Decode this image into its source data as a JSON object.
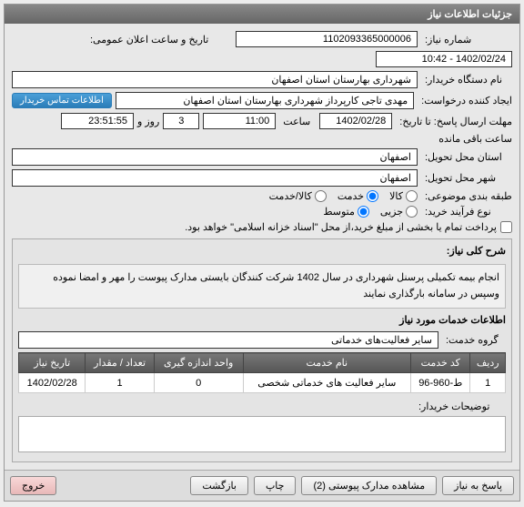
{
  "header": {
    "title": "جزئیات اطلاعات نیاز"
  },
  "labels": {
    "need_no": "شماره نیاز:",
    "announce_datetime": "تاریخ و ساعت اعلان عمومی:",
    "buyer_org": "نام دستگاه خریدار:",
    "requester": "ایجاد کننده درخواست:",
    "deadline": "مهلت ارسال پاسخ: تا تاریخ:",
    "time": "ساعت",
    "day_and": "روز و",
    "remaining": "ساعت باقی مانده",
    "delivery_province": "استان محل تحویل:",
    "delivery_city": "شهر محل تحویل:",
    "subject_category": "طبقه بندی موضوعی:",
    "buy_process_type": "نوع فرآیند خرید:",
    "contact_info_btn": "اطلاعات تماس خریدار",
    "goods": "کالا",
    "service": "خدمت",
    "goods_service": "کالا/خدمت",
    "partial": "جزیی",
    "medium": "متوسط",
    "payment_note": "پرداخت تمام یا بخشی از مبلغ خرید،از محل \"اسناد خزانه اسلامی\" خواهد بود.",
    "need_desc_title": "شرح کلی نیاز:",
    "need_items_title": "اطلاعات خدمات مورد نیاز",
    "service_group": "گروه خدمت:",
    "service_group_val": "سایر فعالیت‌های خدماتی",
    "buyer_notes": "توضیحات خریدار:"
  },
  "values": {
    "need_no": "1102093365000006",
    "announce_datetime": "1402/02/24 - 10:42",
    "buyer_org": "شهرداری بهارستان استان اصفهان",
    "requester": "مهدی تاجی کارپرداز شهرداری بهارستان استان اصفهان",
    "deadline_date": "1402/02/28",
    "deadline_time": "11:00",
    "days_left": "3",
    "time_left": "23:51:55",
    "province": "اصفهان",
    "city": "اصفهان",
    "description": "انجام بیمه تکمیلی پرسنل شهرداری در سال 1402 شرکت کنندگان بایستی مدارک پیوست را مهر و امضا نموده وسپس در سامانه بارگذاری نمایند"
  },
  "table": {
    "columns": [
      "ردیف",
      "کد خدمت",
      "نام خدمت",
      "واحد اندازه گیری",
      "تعداد / مقدار",
      "تاریخ نیاز"
    ],
    "rows": [
      [
        "1",
        "ط-960-96",
        "سایر فعالیت های خدماتی شخصی",
        "0",
        "1",
        "1402/02/28"
      ]
    ]
  },
  "buttons": {
    "reply": "پاسخ به نیاز",
    "attachments": "مشاهده مدارک پیوستی (2)",
    "print": "چاپ",
    "back": "بازگشت",
    "exit": "خروج"
  }
}
